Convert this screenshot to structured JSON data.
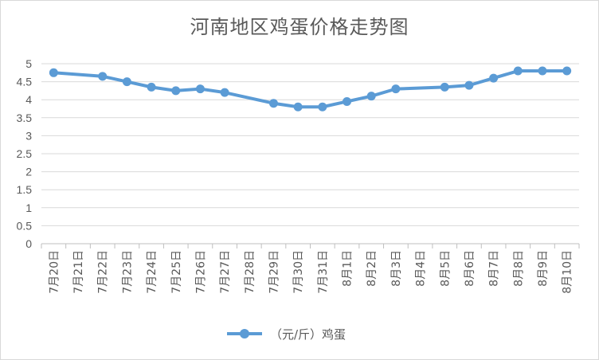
{
  "chart_data": {
    "type": "line",
    "title": "河南地区鸡蛋价格走势图",
    "xlabel": "",
    "ylabel": "",
    "ylim": [
      0,
      5
    ],
    "yticks": [
      "0",
      "0.5",
      "1",
      "1.5",
      "2",
      "2.5",
      "3",
      "3.5",
      "4",
      "4.5",
      "5"
    ],
    "grid": true,
    "legend_position": "bottom",
    "categories": [
      "7月20日",
      "7月21日",
      "7月22日",
      "7月23日",
      "7月24日",
      "7月25日",
      "7月26日",
      "7月27日",
      "7月28日",
      "7月29日",
      "7月30日",
      "7月31日",
      "8月1日",
      "8月2日",
      "8月3日",
      "8月4日",
      "8月5日",
      "8月6日",
      "8月7日",
      "8月8日",
      "8月9日",
      "8月10日"
    ],
    "series": [
      {
        "name": "（元/斤）鸡蛋",
        "color": "#5b9bd5",
        "values": [
          4.75,
          null,
          4.65,
          4.5,
          4.35,
          4.25,
          4.3,
          4.2,
          null,
          3.9,
          3.8,
          3.8,
          3.95,
          4.1,
          4.3,
          null,
          4.35,
          4.4,
          4.6,
          4.8,
          4.8,
          4.8
        ]
      }
    ]
  }
}
